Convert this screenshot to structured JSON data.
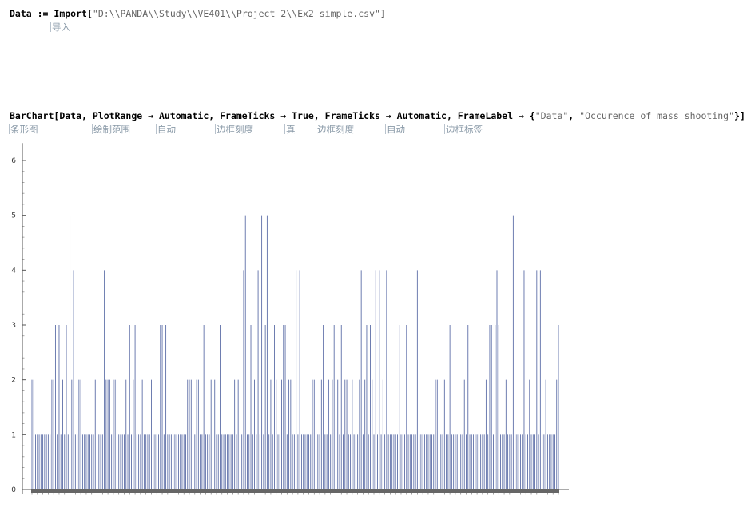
{
  "cell1": {
    "code_var": "Data",
    "code_op": " := ",
    "code_fn": "Import",
    "code_arg": "\"D:\\\\PANDA\\\\Study\\\\VE401\\\\Project 2\\\\Ex2 simple.csv\"",
    "hint_import": "导入"
  },
  "cell2": {
    "fn": "BarChart",
    "args_text": "[Data, PlotRange → Automatic, FrameTicks → True, FrameTicks → Automatic, FrameLabel → {",
    "str1": "\"Data\"",
    "mid": ", ",
    "str2": "\"Occurence of mass shooting\"",
    "close": "}]",
    "hints": {
      "barchart": "条形图",
      "plotrange": "绘制范围",
      "automatic1": "自动",
      "frameticks1": "边框刻度",
      "true": "真",
      "frameticks2": "边框刻度",
      "automatic2": "自动",
      "framelabel": "边框标签"
    }
  },
  "colors": {
    "bar": "#5e6fa8",
    "axis": "#555555",
    "baseline": "#666666"
  },
  "chart_data": {
    "type": "bar",
    "title": "",
    "xlabel": "",
    "ylabel": "",
    "ylim": [
      0,
      6.2
    ],
    "yticks": [
      0,
      1,
      2,
      3,
      4,
      5,
      6
    ],
    "values": [
      2,
      2,
      1,
      1,
      1,
      1,
      1,
      1,
      1,
      1,
      1,
      2,
      2,
      3,
      1,
      3,
      1,
      2,
      1,
      3,
      1,
      5,
      2,
      4,
      1,
      1,
      2,
      2,
      1,
      1,
      1,
      1,
      1,
      1,
      1,
      2,
      1,
      1,
      1,
      1,
      4,
      2,
      2,
      2,
      1,
      2,
      2,
      2,
      1,
      1,
      1,
      1,
      2,
      1,
      3,
      1,
      2,
      3,
      1,
      1,
      1,
      2,
      1,
      1,
      1,
      1,
      2,
      1,
      1,
      1,
      1,
      3,
      3,
      1,
      3,
      1,
      1,
      1,
      1,
      1,
      1,
      1,
      1,
      1,
      1,
      1,
      2,
      2,
      2,
      1,
      1,
      2,
      2,
      1,
      1,
      3,
      1,
      1,
      1,
      2,
      1,
      2,
      1,
      1,
      3,
      1,
      1,
      1,
      1,
      1,
      1,
      1,
      2,
      1,
      2,
      1,
      1,
      4,
      5,
      1,
      1,
      3,
      1,
      2,
      1,
      4,
      1,
      5,
      1,
      3,
      5,
      1,
      2,
      1,
      3,
      2,
      1,
      1,
      2,
      3,
      3,
      1,
      2,
      2,
      1,
      1,
      4,
      1,
      4,
      1,
      1,
      1,
      1,
      1,
      1,
      2,
      2,
      2,
      1,
      1,
      2,
      3,
      1,
      1,
      2,
      1,
      2,
      3,
      1,
      2,
      1,
      3,
      1,
      2,
      2,
      1,
      1,
      2,
      1,
      1,
      1,
      2,
      4,
      1,
      2,
      3,
      1,
      3,
      2,
      1,
      4,
      1,
      4,
      1,
      2,
      1,
      4,
      1,
      1,
      1,
      1,
      1,
      1,
      3,
      1,
      1,
      1,
      3,
      1,
      1,
      1,
      1,
      1,
      4,
      1,
      1,
      1,
      1,
      1,
      1,
      1,
      1,
      1,
      2,
      2,
      1,
      1,
      1,
      2,
      1,
      1,
      3,
      1,
      1,
      1,
      1,
      2,
      1,
      1,
      2,
      1,
      3,
      1,
      1,
      1,
      1,
      1,
      1,
      1,
      1,
      1,
      2,
      1,
      3,
      3,
      1,
      3,
      4,
      3,
      1,
      1,
      1,
      2,
      1,
      1,
      1,
      5,
      1,
      1,
      1,
      1,
      1,
      4,
      1,
      1,
      2,
      1,
      1,
      1,
      4,
      1,
      4,
      1,
      1,
      2,
      1,
      1,
      1,
      1,
      1,
      2,
      3
    ]
  }
}
